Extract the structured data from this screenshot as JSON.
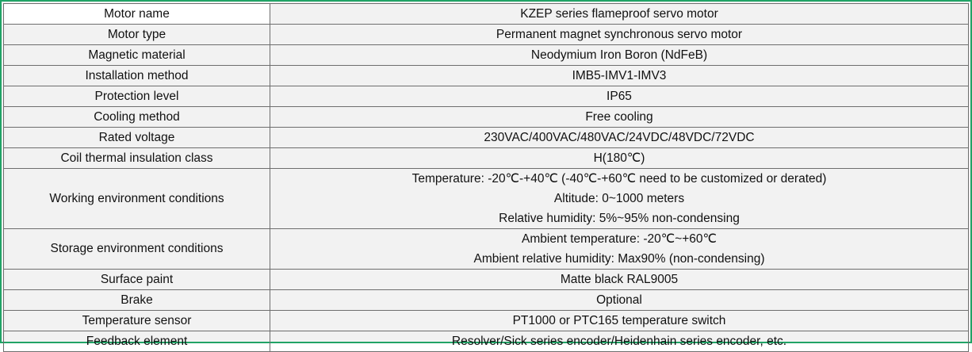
{
  "table": {
    "rows": [
      {
        "label": "Motor name",
        "lines": [
          "KZEP series flameproof servo motor"
        ]
      },
      {
        "label": "Motor type",
        "lines": [
          "Permanent magnet synchronous servo motor"
        ]
      },
      {
        "label": "Magnetic material",
        "lines": [
          "Neodymium Iron Boron (NdFeB)"
        ]
      },
      {
        "label": "Installation method",
        "lines": [
          "IMB5-IMV1-IMV3"
        ]
      },
      {
        "label": "Protection level",
        "lines": [
          "IP65"
        ]
      },
      {
        "label": "Cooling method",
        "lines": [
          "Free cooling"
        ]
      },
      {
        "label": "Rated voltage",
        "lines": [
          "230VAC/400VAC/480VAC/24VDC/48VDC/72VDC"
        ]
      },
      {
        "label": "Coil thermal insulation class",
        "lines": [
          "H(180℃)"
        ]
      },
      {
        "label": "Working environment conditions",
        "lines": [
          "Temperature: -20℃-+40℃ (-40℃-+60℃ need to be customized or derated)",
          "Altitude: 0~1000 meters",
          "Relative humidity: 5%~95% non-condensing"
        ]
      },
      {
        "label": "Storage environment conditions",
        "lines": [
          "Ambient temperature: -20℃~+60℃",
          "Ambient relative humidity: Max90% (non-condensing)"
        ]
      },
      {
        "label": "Surface paint",
        "lines": [
          "Matte black RAL9005"
        ]
      },
      {
        "label": "Brake",
        "lines": [
          "Optional"
        ]
      },
      {
        "label": "Temperature sensor",
        "lines": [
          "PT1000 or PTC165 temperature switch"
        ]
      },
      {
        "label": "Feedback element",
        "lines": [
          "Resolver/Sick series encoder/Heidenhain series encoder, etc."
        ]
      }
    ]
  }
}
